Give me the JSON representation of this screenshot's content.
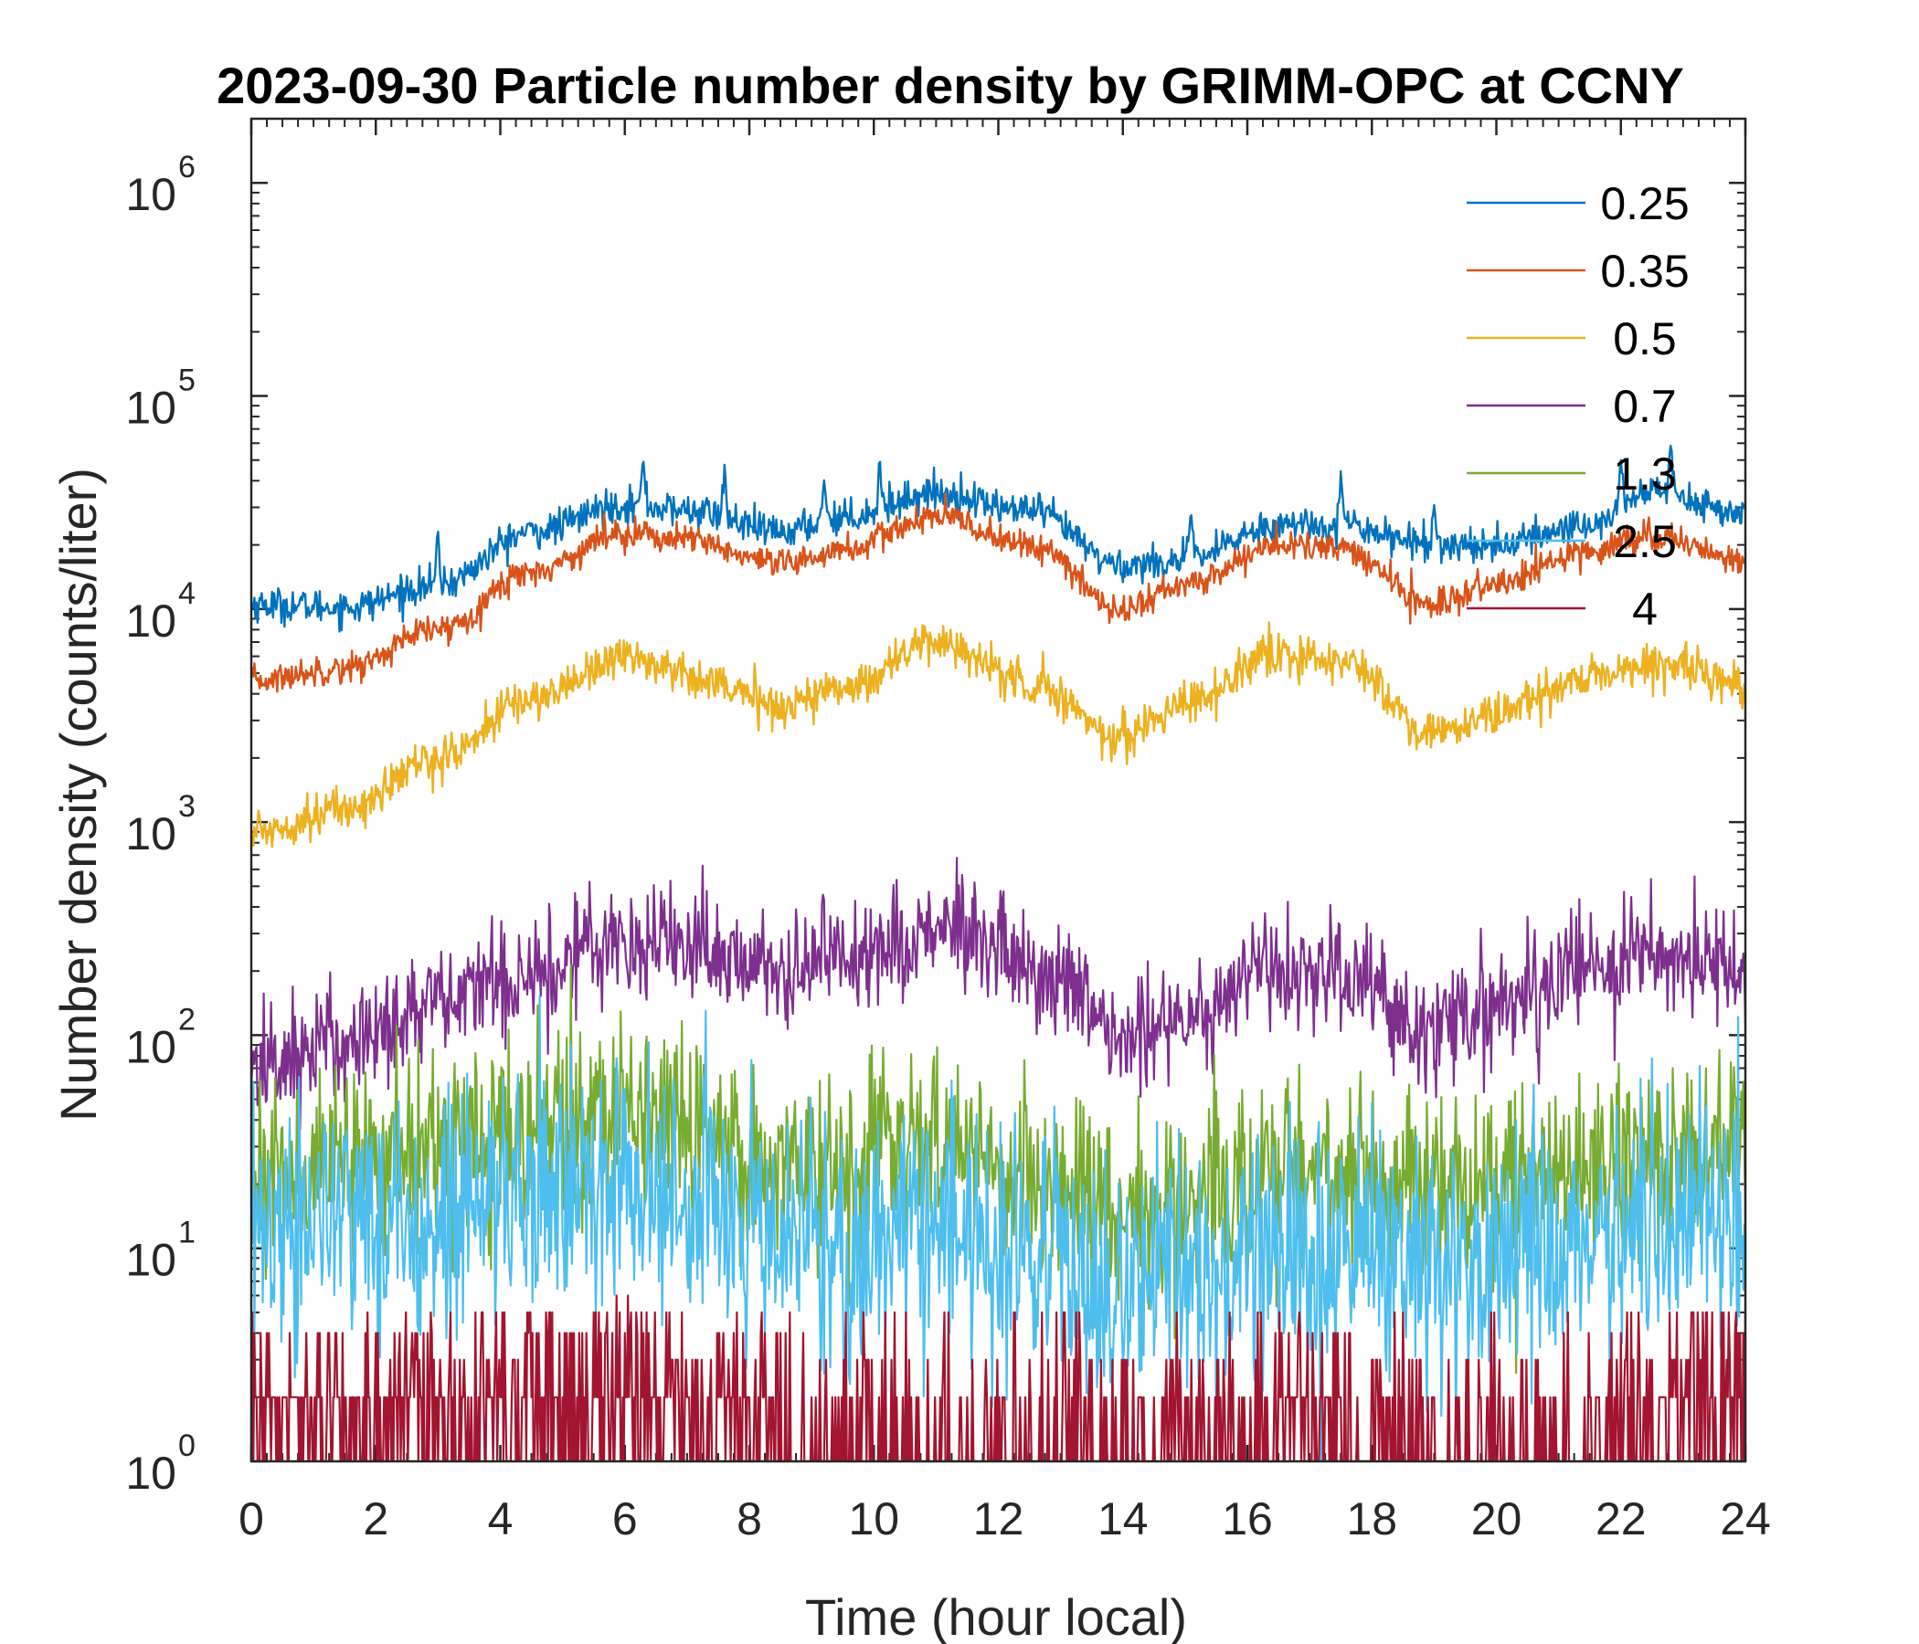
{
  "chart_data": {
    "type": "line",
    "title": "2023-09-30 Particle number density by GRIMM-OPC at CCNY",
    "xlabel": "Time (hour local)",
    "ylabel": "Number density (counts/liter)",
    "xlim": [
      0,
      24
    ],
    "ylim": [
      1,
      2000000
    ],
    "yscale": "log",
    "xticks": [
      0,
      2,
      4,
      6,
      8,
      10,
      12,
      14,
      16,
      18,
      20,
      22,
      24
    ],
    "yticks": [
      {
        "value": 1,
        "base": "10",
        "exp": "0"
      },
      {
        "value": 10,
        "base": "10",
        "exp": "1"
      },
      {
        "value": 100,
        "base": "10",
        "exp": "2"
      },
      {
        "value": 1000,
        "base": "10",
        "exp": "3"
      },
      {
        "value": 10000,
        "base": "10",
        "exp": "4"
      },
      {
        "value": 100000,
        "base": "10",
        "exp": "5"
      },
      {
        "value": 1000000,
        "base": "10",
        "exp": "6"
      }
    ],
    "legend_location": "top-right",
    "series": [
      {
        "name": "0.25",
        "color": "#0072BD",
        "noise": 0.04,
        "spikes": true,
        "x": [
          0,
          1.5,
          3,
          4.5,
          6,
          7,
          8.5,
          9.5,
          11,
          12.5,
          14,
          15,
          16.5,
          17.5,
          19,
          20,
          21.5,
          22.5,
          24
        ],
        "y": [
          10500,
          10200,
          13000,
          23000,
          31000,
          29000,
          23000,
          27000,
          35000,
          29000,
          16000,
          17000,
          25000,
          25000,
          20000,
          20000,
          25000,
          36000,
          28000
        ]
      },
      {
        "name": "0.35",
        "color": "#D95319",
        "noise": 0.035,
        "spikes": false,
        "x": [
          0,
          1.5,
          3,
          4.5,
          6,
          7,
          8.5,
          9.5,
          11,
          12.5,
          14,
          15,
          16.5,
          17.5,
          19,
          20,
          21.5,
          22.5,
          24
        ],
        "y": [
          4600,
          5300,
          8000,
          15000,
          23000,
          21000,
          16000,
          19000,
          27000,
          20000,
          10000,
          13000,
          20000,
          19000,
          10500,
          13000,
          19000,
          22000,
          17000
        ]
      },
      {
        "name": "0.5",
        "color": "#EDB120",
        "noise": 0.05,
        "spikes": false,
        "x": [
          0,
          1.5,
          3,
          4.5,
          6,
          7,
          8.5,
          9.5,
          11,
          12.5,
          14,
          15,
          16.5,
          17.5,
          19,
          20,
          21.5,
          22.5,
          24
        ],
        "y": [
          900,
          1150,
          2000,
          3800,
          6000,
          5000,
          3500,
          4300,
          7000,
          4500,
          2500,
          3700,
          6000,
          5700,
          2600,
          3200,
          4800,
          5500,
          4300
        ]
      },
      {
        "name": "0.7",
        "color": "#7E2F8E",
        "noise": 0.14,
        "spikes": false,
        "x": [
          0,
          1.5,
          3,
          4.5,
          6,
          7,
          8.5,
          9.5,
          11,
          12.5,
          14,
          15,
          16.5,
          17.5,
          19,
          20,
          21.5,
          22.5,
          24
        ],
        "y": [
          70,
          95,
          140,
          200,
          290,
          270,
          200,
          240,
          310,
          210,
          95,
          130,
          200,
          180,
          110,
          140,
          200,
          240,
          200
        ]
      },
      {
        "name": "1.3",
        "color": "#77AC30",
        "noise": 0.22,
        "spikes": false,
        "x": [
          0,
          1.5,
          3,
          4.5,
          6,
          7,
          8.5,
          9.5,
          11,
          12.5,
          14,
          15,
          16.5,
          17.5,
          19,
          20,
          21.5,
          22.5,
          24
        ],
        "y": [
          22,
          25,
          30,
          35,
          45,
          40,
          25,
          26,
          30,
          22,
          15,
          16,
          22,
          22,
          20,
          21,
          25,
          28,
          28
        ]
      },
      {
        "name": "2.5",
        "color": "#4DBEEE",
        "noise": 0.3,
        "spikes": false,
        "x": [
          0,
          1.5,
          3,
          4.5,
          6,
          7,
          8.5,
          9.5,
          11,
          12.5,
          14,
          15,
          16.5,
          17.5,
          19,
          20,
          21.5,
          22.5,
          24
        ],
        "y": [
          12,
          14,
          15,
          17,
          19,
          17,
          12,
          10,
          11,
          9,
          7,
          7,
          9,
          9,
          9,
          9,
          10,
          12,
          14
        ]
      },
      {
        "name": "4",
        "color": "#A2142F",
        "noise": 0,
        "spikes": false,
        "x": [
          0,
          1.5,
          3,
          4.5,
          6,
          7,
          8.5,
          9.5,
          11,
          12.5,
          14,
          15,
          16.5,
          17.5,
          19,
          20,
          21.5,
          22.5,
          24
        ],
        "y": [
          1.5,
          1.5,
          1.8,
          2.2,
          2.3,
          2.0,
          1.5,
          1.4,
          1.3,
          1.2,
          1.1,
          1.2,
          1.5,
          1.5,
          1.3,
          1.3,
          1.5,
          2.0,
          2.2
        ]
      }
    ]
  }
}
